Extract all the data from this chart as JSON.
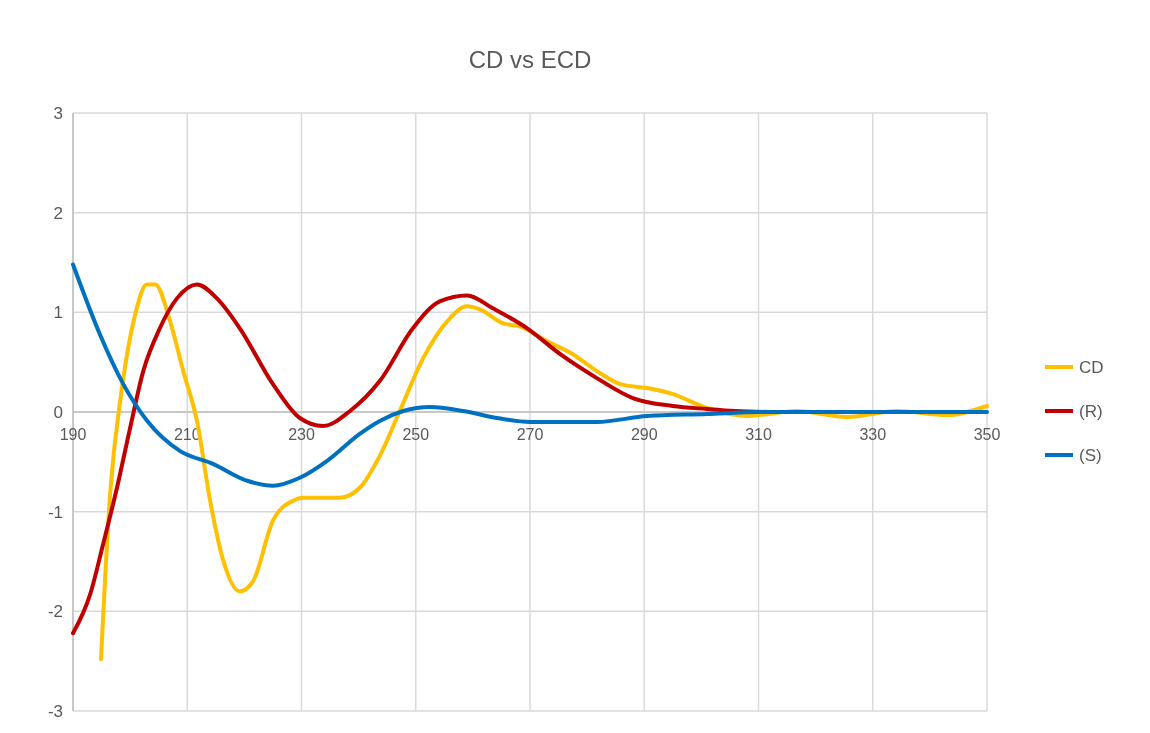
{
  "chart_data": {
    "type": "line",
    "title": "CD vs ECD",
    "xlim": [
      190,
      350
    ],
    "xticks": [
      190,
      210,
      230,
      250,
      270,
      290,
      310,
      330,
      350
    ],
    "ylim": [
      -3,
      3
    ],
    "yticks": [
      -3,
      -2,
      -1,
      0,
      1,
      2,
      3
    ],
    "grid": true,
    "legend": "right",
    "marker": "none",
    "line_style": "solid",
    "series": [
      {
        "name": "CD",
        "color": "#ffc000",
        "x": [
          194.9,
          196.5,
          198.5,
          200.9,
          202.9,
          204.4,
          207,
          209.3,
          211.7,
          214,
          216.3,
          219.2,
          221.5,
          225,
          228.5,
          230.3,
          236.7,
          240.2,
          243.7,
          247.2,
          251.3,
          255.5,
          259,
          261.2,
          265.3,
          268.2,
          273,
          277.5,
          281.7,
          285.8,
          290.5,
          295,
          301,
          308,
          316.7,
          325.5,
          334.2,
          343,
          350
        ],
        "values": [
          -2.48,
          -0.82,
          0.21,
          0.98,
          1.28,
          1.28,
          0.91,
          0.41,
          -0.09,
          -0.89,
          -1.49,
          -1.8,
          -1.7,
          -1.09,
          -0.89,
          -0.86,
          -0.86,
          -0.76,
          -0.44,
          0.01,
          0.54,
          0.91,
          1.06,
          1.03,
          0.89,
          0.86,
          0.71,
          0.58,
          0.41,
          0.28,
          0.24,
          0.18,
          0.04,
          -0.04,
          0.01,
          -0.05,
          0.01,
          -0.03,
          0.06
        ]
      },
      {
        "name": "(R)",
        "color": "#c00000",
        "x": [
          190,
          193,
          195.3,
          197.7,
          200,
          202.3,
          205.2,
          208.2,
          211.7,
          215.2,
          219.2,
          225,
          229.7,
          233.8,
          238.5,
          243.7,
          249.5,
          254.2,
          259,
          263.5,
          269.5,
          275.3,
          281.7,
          288,
          295,
          301,
          306,
          312
        ],
        "values": [
          -2.22,
          -1.83,
          -1.32,
          -0.76,
          -0.16,
          0.41,
          0.84,
          1.14,
          1.28,
          1.14,
          0.84,
          0.28,
          -0.06,
          -0.14,
          0.01,
          0.31,
          0.84,
          1.11,
          1.17,
          1.04,
          0.84,
          0.58,
          0.34,
          0.14,
          0.06,
          0.03,
          0.01,
          0
        ]
      },
      {
        "name": "(S)",
        "color": "#0070c0",
        "x": [
          190,
          194.7,
          198.8,
          203,
          208.7,
          214.5,
          220.5,
          225,
          229.7,
          234.5,
          240.2,
          243.7,
          247.8,
          252.5,
          258.3,
          264.2,
          270,
          281.7,
          290.5,
          301,
          310,
          330,
          350
        ],
        "values": [
          1.48,
          0.78,
          0.28,
          -0.09,
          -0.39,
          -0.52,
          -0.69,
          -0.74,
          -0.66,
          -0.49,
          -0.22,
          -0.09,
          0.01,
          0.05,
          0.01,
          -0.06,
          -0.1,
          -0.1,
          -0.04,
          -0.02,
          0,
          0,
          0
        ]
      }
    ]
  }
}
